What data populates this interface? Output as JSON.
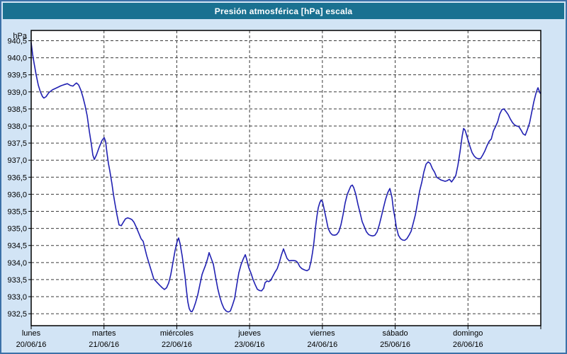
{
  "window": {
    "title": "Presión atmosférica [hPa] escala"
  },
  "page": {
    "colors": {
      "page_bg": "#d2e4f5",
      "page_border": "#3c71a8",
      "titlebar_bg": "#1a7191",
      "plot_bg": "#ffffff"
    }
  },
  "chart_data": {
    "type": "line",
    "title": "Presión atmosférica [hPa] escala",
    "unit_label": "hPa",
    "line_color": "#2121b2",
    "grid": "dashed",
    "legend": "none",
    "xlim": [
      0,
      7
    ],
    "ylim": [
      932.15,
      940.8
    ],
    "yticks": [
      {
        "v": 940.5,
        "label": "940,5"
      },
      {
        "v": 940.0,
        "label": "940,0"
      },
      {
        "v": 939.5,
        "label": "939,5"
      },
      {
        "v": 939.0,
        "label": "939,0"
      },
      {
        "v": 938.5,
        "label": "938,5"
      },
      {
        "v": 938.0,
        "label": "938,0"
      },
      {
        "v": 937.5,
        "label": "937,5"
      },
      {
        "v": 937.0,
        "label": "937,0"
      },
      {
        "v": 936.5,
        "label": "936,5"
      },
      {
        "v": 936.0,
        "label": "936,0"
      },
      {
        "v": 935.5,
        "label": "935,5"
      },
      {
        "v": 935.0,
        "label": "935,0"
      },
      {
        "v": 934.5,
        "label": "934,5"
      },
      {
        "v": 934.0,
        "label": "934,0"
      },
      {
        "v": 933.5,
        "label": "933,5"
      },
      {
        "v": 933.0,
        "label": "933,0"
      },
      {
        "v": 932.5,
        "label": "932,5"
      }
    ],
    "x_categories": [
      {
        "day": "lunes",
        "date": "20/06/16"
      },
      {
        "day": "martes",
        "date": "21/06/16"
      },
      {
        "day": "miércoles",
        "date": "22/06/16"
      },
      {
        "day": "jueves",
        "date": "23/06/16"
      },
      {
        "day": "viernes",
        "date": "24/06/16"
      },
      {
        "day": "sábado",
        "date": "25/06/16"
      },
      {
        "day": "domingo",
        "date": "26/06/16"
      }
    ],
    "series": [
      {
        "name": "Presión atmosférica",
        "points": [
          [
            0.0,
            940.44
          ],
          [
            0.019,
            940.1
          ],
          [
            0.039,
            939.85
          ],
          [
            0.068,
            939.5
          ],
          [
            0.097,
            939.2
          ],
          [
            0.127,
            939.0
          ],
          [
            0.156,
            938.86
          ],
          [
            0.175,
            938.82
          ],
          [
            0.204,
            938.86
          ],
          [
            0.243,
            938.98
          ],
          [
            0.292,
            939.06
          ],
          [
            0.351,
            939.12
          ],
          [
            0.409,
            939.18
          ],
          [
            0.448,
            939.21
          ],
          [
            0.497,
            939.24
          ],
          [
            0.536,
            939.19
          ],
          [
            0.574,
            939.17
          ],
          [
            0.604,
            939.23
          ],
          [
            0.623,
            939.26
          ],
          [
            0.652,
            939.2
          ],
          [
            0.682,
            939.05
          ],
          [
            0.711,
            938.85
          ],
          [
            0.74,
            938.6
          ],
          [
            0.769,
            938.3
          ],
          [
            0.798,
            937.85
          ],
          [
            0.828,
            937.45
          ],
          [
            0.847,
            937.15
          ],
          [
            0.867,
            937.02
          ],
          [
            0.896,
            937.15
          ],
          [
            0.935,
            937.38
          ],
          [
            0.974,
            937.58
          ],
          [
            1.003,
            937.66
          ],
          [
            1.022,
            937.55
          ],
          [
            1.042,
            937.2
          ],
          [
            1.061,
            936.9
          ],
          [
            1.081,
            936.68
          ],
          [
            1.11,
            936.3
          ],
          [
            1.129,
            936.0
          ],
          [
            1.149,
            935.75
          ],
          [
            1.178,
            935.4
          ],
          [
            1.207,
            935.1
          ],
          [
            1.237,
            935.08
          ],
          [
            1.266,
            935.18
          ],
          [
            1.295,
            935.28
          ],
          [
            1.324,
            935.31
          ],
          [
            1.353,
            935.29
          ],
          [
            1.383,
            935.26
          ],
          [
            1.412,
            935.18
          ],
          [
            1.441,
            935.05
          ],
          [
            1.48,
            934.85
          ],
          [
            1.509,
            934.7
          ],
          [
            1.538,
            934.62
          ],
          [
            1.587,
            934.2
          ],
          [
            1.636,
            933.86
          ],
          [
            1.684,
            933.52
          ],
          [
            1.723,
            933.43
          ],
          [
            1.762,
            933.34
          ],
          [
            1.801,
            933.26
          ],
          [
            1.83,
            933.21
          ],
          [
            1.86,
            933.26
          ],
          [
            1.889,
            933.4
          ],
          [
            1.918,
            933.65
          ],
          [
            1.947,
            934.0
          ],
          [
            1.976,
            934.35
          ],
          [
            2.006,
            934.62
          ],
          [
            2.025,
            934.72
          ],
          [
            2.045,
            934.55
          ],
          [
            2.074,
            934.2
          ],
          [
            2.093,
            933.9
          ],
          [
            2.113,
            933.6
          ],
          [
            2.132,
            933.2
          ],
          [
            2.152,
            932.85
          ],
          [
            2.171,
            932.65
          ],
          [
            2.191,
            932.57
          ],
          [
            2.21,
            932.56
          ],
          [
            2.23,
            932.65
          ],
          [
            2.259,
            932.83
          ],
          [
            2.288,
            933.05
          ],
          [
            2.317,
            933.35
          ],
          [
            2.347,
            933.65
          ],
          [
            2.366,
            933.76
          ],
          [
            2.395,
            933.92
          ],
          [
            2.424,
            934.12
          ],
          [
            2.444,
            934.29
          ],
          [
            2.473,
            934.12
          ],
          [
            2.502,
            933.95
          ],
          [
            2.531,
            933.6
          ],
          [
            2.561,
            933.25
          ],
          [
            2.59,
            933.0
          ],
          [
            2.619,
            932.8
          ],
          [
            2.649,
            932.65
          ],
          [
            2.678,
            932.58
          ],
          [
            2.707,
            932.55
          ],
          [
            2.736,
            932.58
          ],
          [
            2.765,
            932.75
          ],
          [
            2.795,
            932.95
          ],
          [
            2.824,
            933.35
          ],
          [
            2.853,
            933.7
          ],
          [
            2.882,
            933.93
          ],
          [
            2.912,
            934.1
          ],
          [
            2.941,
            934.23
          ],
          [
            2.96,
            934.1
          ],
          [
            2.989,
            933.85
          ],
          [
            3.019,
            933.69
          ],
          [
            3.048,
            933.5
          ],
          [
            3.077,
            933.35
          ],
          [
            3.106,
            933.22
          ],
          [
            3.135,
            933.18
          ],
          [
            3.165,
            933.17
          ],
          [
            3.194,
            933.25
          ],
          [
            3.213,
            933.41
          ],
          [
            3.242,
            933.46
          ],
          [
            3.262,
            933.44
          ],
          [
            3.291,
            933.48
          ],
          [
            3.32,
            933.6
          ],
          [
            3.35,
            933.72
          ],
          [
            3.379,
            933.82
          ],
          [
            3.408,
            934.0
          ],
          [
            3.437,
            934.22
          ],
          [
            3.466,
            934.4
          ],
          [
            3.486,
            934.28
          ],
          [
            3.515,
            934.12
          ],
          [
            3.544,
            934.05
          ],
          [
            3.573,
            934.06
          ],
          [
            3.602,
            934.06
          ],
          [
            3.632,
            934.05
          ],
          [
            3.661,
            934.0
          ],
          [
            3.69,
            933.88
          ],
          [
            3.719,
            933.82
          ],
          [
            3.758,
            933.78
          ],
          [
            3.787,
            933.76
          ],
          [
            3.817,
            933.8
          ],
          [
            3.846,
            934.05
          ],
          [
            3.865,
            934.3
          ],
          [
            3.885,
            934.6
          ],
          [
            3.904,
            935.0
          ],
          [
            3.924,
            935.35
          ],
          [
            3.943,
            935.6
          ],
          [
            3.963,
            935.75
          ],
          [
            3.982,
            935.83
          ],
          [
            4.002,
            935.78
          ],
          [
            4.021,
            935.6
          ],
          [
            4.05,
            935.3
          ],
          [
            4.079,
            935.0
          ],
          [
            4.109,
            934.87
          ],
          [
            4.138,
            934.81
          ],
          [
            4.167,
            934.8
          ],
          [
            4.196,
            934.82
          ],
          [
            4.225,
            934.9
          ],
          [
            4.255,
            935.1
          ],
          [
            4.284,
            935.4
          ],
          [
            4.313,
            935.75
          ],
          [
            4.342,
            936.0
          ],
          [
            4.372,
            936.15
          ],
          [
            4.391,
            936.24
          ],
          [
            4.411,
            936.27
          ],
          [
            4.43,
            936.2
          ],
          [
            4.459,
            936.0
          ],
          [
            4.489,
            935.7
          ],
          [
            4.518,
            935.45
          ],
          [
            4.547,
            935.2
          ],
          [
            4.576,
            935.05
          ],
          [
            4.605,
            934.9
          ],
          [
            4.635,
            934.82
          ],
          [
            4.664,
            934.79
          ],
          [
            4.693,
            934.78
          ],
          [
            4.722,
            934.8
          ],
          [
            4.752,
            934.9
          ],
          [
            4.781,
            935.1
          ],
          [
            4.81,
            935.35
          ],
          [
            4.839,
            935.6
          ],
          [
            4.868,
            935.85
          ],
          [
            4.898,
            936.05
          ],
          [
            4.927,
            936.17
          ],
          [
            4.956,
            935.9
          ],
          [
            4.976,
            935.55
          ],
          [
            4.995,
            935.33
          ],
          [
            5.015,
            935.05
          ],
          [
            5.044,
            934.8
          ],
          [
            5.073,
            934.7
          ],
          [
            5.102,
            934.66
          ],
          [
            5.131,
            934.65
          ],
          [
            5.161,
            934.7
          ],
          [
            5.19,
            934.8
          ],
          [
            5.219,
            934.92
          ],
          [
            5.248,
            935.15
          ],
          [
            5.278,
            935.4
          ],
          [
            5.307,
            935.75
          ],
          [
            5.336,
            936.1
          ],
          [
            5.365,
            936.35
          ],
          [
            5.394,
            936.65
          ],
          [
            5.424,
            936.88
          ],
          [
            5.453,
            936.95
          ],
          [
            5.482,
            936.9
          ],
          [
            5.511,
            936.75
          ],
          [
            5.541,
            936.65
          ],
          [
            5.57,
            936.5
          ],
          [
            5.599,
            936.46
          ],
          [
            5.628,
            936.42
          ],
          [
            5.657,
            936.4
          ],
          [
            5.687,
            936.38
          ],
          [
            5.716,
            936.4
          ],
          [
            5.745,
            936.44
          ],
          [
            5.774,
            936.36
          ],
          [
            5.804,
            936.45
          ],
          [
            5.833,
            936.55
          ],
          [
            5.862,
            936.85
          ],
          [
            5.891,
            937.25
          ],
          [
            5.92,
            937.7
          ],
          [
            5.94,
            937.93
          ],
          [
            5.959,
            937.88
          ],
          [
            5.979,
            937.75
          ],
          [
            5.998,
            937.61
          ],
          [
            6.027,
            937.4
          ],
          [
            6.057,
            937.22
          ],
          [
            6.086,
            937.12
          ],
          [
            6.115,
            937.06
          ],
          [
            6.144,
            937.04
          ],
          [
            6.174,
            937.05
          ],
          [
            6.203,
            937.15
          ],
          [
            6.232,
            937.27
          ],
          [
            6.261,
            937.42
          ],
          [
            6.29,
            937.55
          ],
          [
            6.32,
            937.62
          ],
          [
            6.349,
            937.85
          ],
          [
            6.378,
            937.98
          ],
          [
            6.407,
            938.12
          ],
          [
            6.436,
            938.35
          ],
          [
            6.466,
            938.48
          ],
          [
            6.495,
            938.5
          ],
          [
            6.524,
            938.42
          ],
          [
            6.553,
            938.33
          ],
          [
            6.583,
            938.2
          ],
          [
            6.612,
            938.1
          ],
          [
            6.641,
            938.03
          ],
          [
            6.67,
            938.0
          ],
          [
            6.699,
            937.98
          ],
          [
            6.729,
            937.88
          ],
          [
            6.758,
            937.77
          ],
          [
            6.787,
            937.73
          ],
          [
            6.817,
            937.9
          ],
          [
            6.846,
            938.09
          ],
          [
            6.875,
            938.4
          ],
          [
            6.904,
            938.7
          ],
          [
            6.933,
            938.95
          ],
          [
            6.953,
            939.08
          ],
          [
            6.962,
            939.12
          ],
          [
            6.982,
            939.0
          ],
          [
            6.992,
            938.96
          ]
        ]
      }
    ]
  }
}
